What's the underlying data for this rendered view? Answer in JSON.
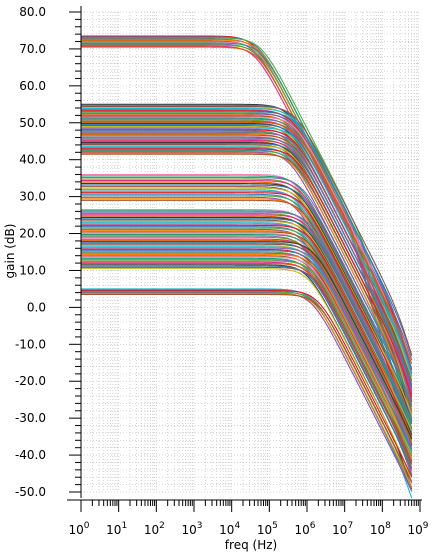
{
  "chart_data": {
    "type": "line",
    "title": "",
    "xlabel": "freq (Hz)",
    "ylabel": "gain (dB)",
    "xscale": "log",
    "xlim": [
      1,
      1000000000
    ],
    "ylim": [
      -50,
      80
    ],
    "grid": true,
    "legend": "none",
    "x_ticks": [
      "0",
      "1",
      "2",
      "3",
      "4",
      "5",
      "6",
      "7",
      "8",
      "9"
    ],
    "x_tick_base": "10",
    "y_ticks": [
      "80.0",
      "70.0",
      "60.0",
      "50.0",
      "40.0",
      "30.0",
      "20.0",
      "10.0",
      "0.0",
      "-10.0",
      "-20.0",
      "-30.0",
      "-40.0",
      "-50.0"
    ],
    "freq_max": 600000000,
    "colors": [
      "#e41a1c",
      "#377eb8",
      "#4daf4a",
      "#984ea3",
      "#ff7f00",
      "#a65628",
      "#f781bf",
      "#1b9e77",
      "#7570b3",
      "#66a61e",
      "#e7298a",
      "#d95f02",
      "#3a3a3a",
      "#2c7fb8",
      "#8c564b",
      "#bcbd22",
      "#17becf",
      "#9467bd"
    ],
    "curve_groups": [
      {
        "dc_gain_min": 70.5,
        "dc_gain_max": 73.5,
        "corner_hz": 50000,
        "count": 12
      },
      {
        "dc_gain_min": 41.5,
        "dc_gain_max": 55.0,
        "corner_hz": 400000,
        "count": 48
      },
      {
        "dc_gain_min": 29.0,
        "dc_gain_max": 36.0,
        "corner_hz": 600000,
        "count": 18
      },
      {
        "dc_gain_min": 19.0,
        "dc_gain_max": 26.5,
        "corner_hz": 900000,
        "count": 22
      },
      {
        "dc_gain_min": 10.5,
        "dc_gain_max": 18.5,
        "corner_hz": 1200000,
        "count": 24
      },
      {
        "dc_gain_min": 3.5,
        "dc_gain_max": 5.0,
        "corner_hz": 1600000,
        "count": 8
      }
    ]
  }
}
